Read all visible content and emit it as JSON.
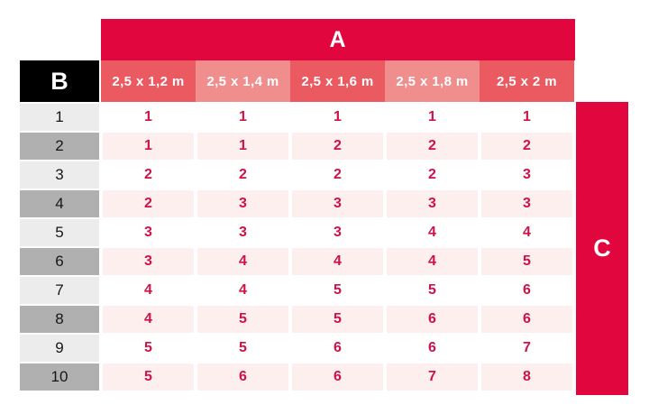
{
  "chart_data": {
    "type": "table",
    "column_group_label": "A",
    "row_group_label": "B",
    "side_band_label": "C",
    "columns": [
      "2,5 x 1,2 m",
      "2,5 x 1,4 m",
      "2,5 x 1,6 m",
      "2,5 x 1,8 m",
      "2,5 x 2 m"
    ],
    "rows": [
      {
        "label": "1",
        "values": [
          1,
          1,
          1,
          1,
          1
        ]
      },
      {
        "label": "2",
        "values": [
          1,
          1,
          2,
          2,
          2
        ]
      },
      {
        "label": "3",
        "values": [
          2,
          2,
          2,
          2,
          3
        ]
      },
      {
        "label": "4",
        "values": [
          2,
          3,
          3,
          3,
          3
        ]
      },
      {
        "label": "5",
        "values": [
          3,
          3,
          3,
          4,
          4
        ]
      },
      {
        "label": "6",
        "values": [
          3,
          4,
          4,
          4,
          5
        ]
      },
      {
        "label": "7",
        "values": [
          4,
          4,
          5,
          5,
          6
        ]
      },
      {
        "label": "8",
        "values": [
          4,
          5,
          5,
          6,
          6
        ]
      },
      {
        "label": "9",
        "values": [
          5,
          5,
          6,
          6,
          7
        ]
      },
      {
        "label": "10",
        "values": [
          5,
          6,
          6,
          7,
          8
        ]
      }
    ],
    "layout_hints": {
      "row_striping": "odd rows white, even rows light pink",
      "column_header_striping": "alternating dark/light salmon",
      "grid": "white gaps between cells"
    }
  },
  "colors": {
    "primary_red": "#e2063e",
    "column_header_dark": "#ea5a60",
    "column_header_light": "#f08d8d",
    "corner_cell_bg": "#000000",
    "row_label_odd": "#ececec",
    "row_label_even": "#b0b0b0",
    "row_stripe_pink": "#fcefed",
    "value_text": "#cf1245"
  }
}
